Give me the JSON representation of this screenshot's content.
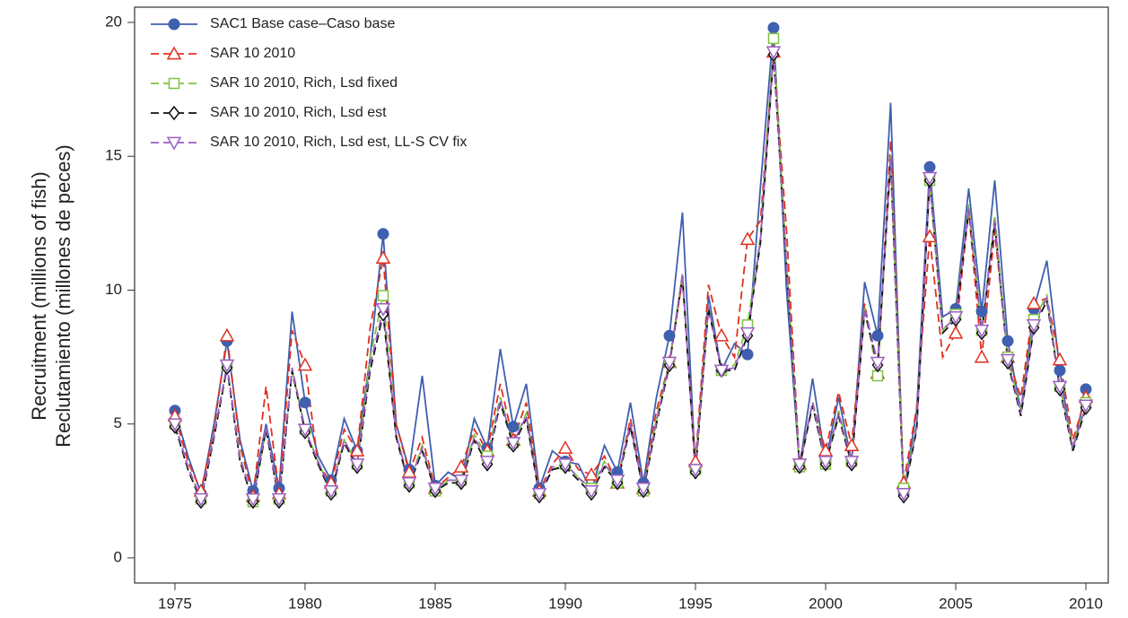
{
  "chart_data": {
    "type": "line",
    "ylabel": [
      "Recruitment (millions of fish)",
      "Reclutamiento (millones de peces)"
    ],
    "x": [
      1975,
      1975.5,
      1976,
      1976.5,
      1977,
      1977.5,
      1978,
      1978.5,
      1979,
      1979.5,
      1980,
      1980.5,
      1981,
      1981.5,
      1982,
      1982.5,
      1983,
      1983.5,
      1984,
      1984.5,
      1985,
      1985.5,
      1986,
      1986.5,
      1987,
      1987.5,
      1988,
      1988.5,
      1989,
      1989.5,
      1990,
      1990.5,
      1991,
      1991.5,
      1992,
      1992.5,
      1993,
      1993.5,
      1994,
      1994.5,
      1995,
      1995.5,
      1996,
      1996.5,
      1997,
      1997.5,
      1998,
      1998.5,
      1999,
      1999.5,
      2000,
      2000.5,
      2001,
      2001.5,
      2002,
      2002.5,
      2003,
      2003.5,
      2004,
      2004.5,
      2005,
      2005.5,
      2006,
      2006.5,
      2007,
      2007.5,
      2008,
      2008.5,
      2009,
      2009.5,
      2010
    ],
    "xlim": [
      1973.45,
      2010.86
    ],
    "xticks": [
      1975,
      1980,
      1985,
      1990,
      1995,
      2000,
      2005,
      2010
    ],
    "ylim": [
      -0.94,
      20.57
    ],
    "yticks": [
      0,
      5,
      10,
      15,
      20
    ],
    "legend": "top-left",
    "series": [
      {
        "name": "SAC1 Base case–Caso base",
        "color": "#3f5fb0",
        "marker": "circle",
        "dash": false,
        "values": [
          5.5,
          3.8,
          2.4,
          5.0,
          8.1,
          4.4,
          2.5,
          5.0,
          2.6,
          9.2,
          5.8,
          3.8,
          2.9,
          5.2,
          4.0,
          7.5,
          12.1,
          5.0,
          3.3,
          6.8,
          2.7,
          3.2,
          2.9,
          5.2,
          4.1,
          7.8,
          4.9,
          6.5,
          2.6,
          4.0,
          3.6,
          3.5,
          2.5,
          4.2,
          3.2,
          5.8,
          2.8,
          6.0,
          8.3,
          12.9,
          3.3,
          9.8,
          7.0,
          8.0,
          7.6,
          13.9,
          19.8,
          10.0,
          3.4,
          6.7,
          3.6,
          6.0,
          3.6,
          10.3,
          8.3,
          17.0,
          2.4,
          5.5,
          14.6,
          9.0,
          9.3,
          13.8,
          9.2,
          14.1,
          8.1,
          5.5,
          9.3,
          11.1,
          7.0,
          4.0,
          6.3
        ]
      },
      {
        "name": "SAR 10 2010",
        "color": "#e03020",
        "marker": "triangle",
        "dash": true,
        "values": [
          5.3,
          3.6,
          2.5,
          4.8,
          8.3,
          4.2,
          2.3,
          6.4,
          2.4,
          8.5,
          7.2,
          3.5,
          2.8,
          4.8,
          4.0,
          8.6,
          11.2,
          5.0,
          3.2,
          4.5,
          2.6,
          3.0,
          3.4,
          4.8,
          4.0,
          6.5,
          4.4,
          5.8,
          2.5,
          3.5,
          4.1,
          3.3,
          3.1,
          3.8,
          2.8,
          5.2,
          2.6,
          5.5,
          7.3,
          10.4,
          3.6,
          10.2,
          8.3,
          7.5,
          11.9,
          12.6,
          18.9,
          12.2,
          3.5,
          5.8,
          4.0,
          6.2,
          4.2,
          9.5,
          6.9,
          15.6,
          2.8,
          5.6,
          12.0,
          7.5,
          8.4,
          13.0,
          7.5,
          12.2,
          7.5,
          6.0,
          9.5,
          9.7,
          7.4,
          4.4,
          6.0
        ]
      },
      {
        "name": "SAR 10 2010, Rich, Lsd fixed",
        "color": "#7cc242",
        "marker": "square",
        "dash": true,
        "values": [
          5.0,
          3.4,
          2.2,
          4.6,
          7.2,
          3.8,
          2.1,
          4.8,
          2.2,
          7.0,
          4.8,
          3.6,
          2.5,
          4.4,
          3.5,
          7.5,
          9.8,
          4.6,
          2.8,
          4.2,
          2.5,
          2.9,
          2.9,
          4.6,
          3.8,
          6.0,
          4.3,
          5.4,
          2.4,
          3.3,
          3.5,
          3.0,
          2.6,
          3.6,
          2.8,
          5.0,
          2.5,
          5.2,
          7.3,
          10.6,
          3.3,
          9.4,
          7.0,
          7.2,
          8.7,
          12.0,
          19.4,
          11.0,
          3.4,
          5.8,
          3.5,
          5.5,
          3.6,
          9.4,
          6.8,
          15.0,
          2.6,
          5.0,
          14.1,
          8.5,
          9.1,
          13.2,
          8.5,
          12.8,
          7.5,
          5.5,
          8.9,
          9.8,
          6.4,
          4.2,
          5.8
        ]
      },
      {
        "name": "SAR 10 2010, Rich, Lsd est",
        "color": "#111111",
        "marker": "diamond",
        "dash": true,
        "values": [
          4.9,
          3.3,
          2.1,
          4.5,
          7.1,
          3.6,
          2.1,
          4.8,
          2.1,
          7.0,
          4.7,
          3.5,
          2.4,
          4.3,
          3.4,
          7.0,
          9.1,
          4.5,
          2.7,
          4.0,
          2.5,
          2.8,
          2.8,
          4.4,
          3.5,
          5.8,
          4.2,
          5.2,
          2.3,
          3.3,
          3.4,
          2.9,
          2.4,
          3.4,
          2.8,
          4.9,
          2.5,
          5.0,
          7.2,
          10.5,
          3.2,
          9.3,
          7.0,
          7.0,
          8.3,
          11.8,
          18.8,
          10.8,
          3.4,
          5.7,
          3.5,
          5.3,
          3.5,
          9.2,
          7.2,
          14.8,
          2.3,
          4.8,
          14.1,
          8.4,
          8.9,
          13.0,
          8.4,
          12.5,
          7.3,
          5.3,
          8.6,
          9.6,
          6.3,
          4.0,
          5.6
        ]
      },
      {
        "name": "SAR 10 2010, Rich, Lsd est, LL-S CV fix",
        "color": "#9b5fc0",
        "marker": "triangle-down",
        "dash": true,
        "values": [
          5.0,
          3.4,
          2.2,
          4.6,
          7.2,
          3.7,
          2.2,
          4.9,
          2.2,
          7.1,
          4.8,
          3.6,
          2.5,
          4.4,
          3.5,
          7.2,
          9.3,
          4.6,
          2.8,
          4.1,
          2.6,
          2.9,
          2.9,
          4.5,
          3.6,
          5.9,
          4.3,
          5.3,
          2.4,
          3.4,
          3.5,
          3.0,
          2.5,
          3.5,
          2.9,
          5.0,
          2.6,
          5.1,
          7.3,
          10.6,
          3.3,
          9.4,
          7.0,
          7.1,
          8.4,
          11.9,
          18.9,
          10.9,
          3.5,
          5.8,
          3.6,
          5.4,
          3.6,
          9.3,
          7.3,
          14.9,
          2.4,
          4.9,
          14.2,
          8.5,
          9.0,
          13.1,
          8.5,
          12.6,
          7.4,
          5.4,
          8.7,
          9.7,
          6.4,
          4.1,
          5.7
        ]
      }
    ]
  }
}
